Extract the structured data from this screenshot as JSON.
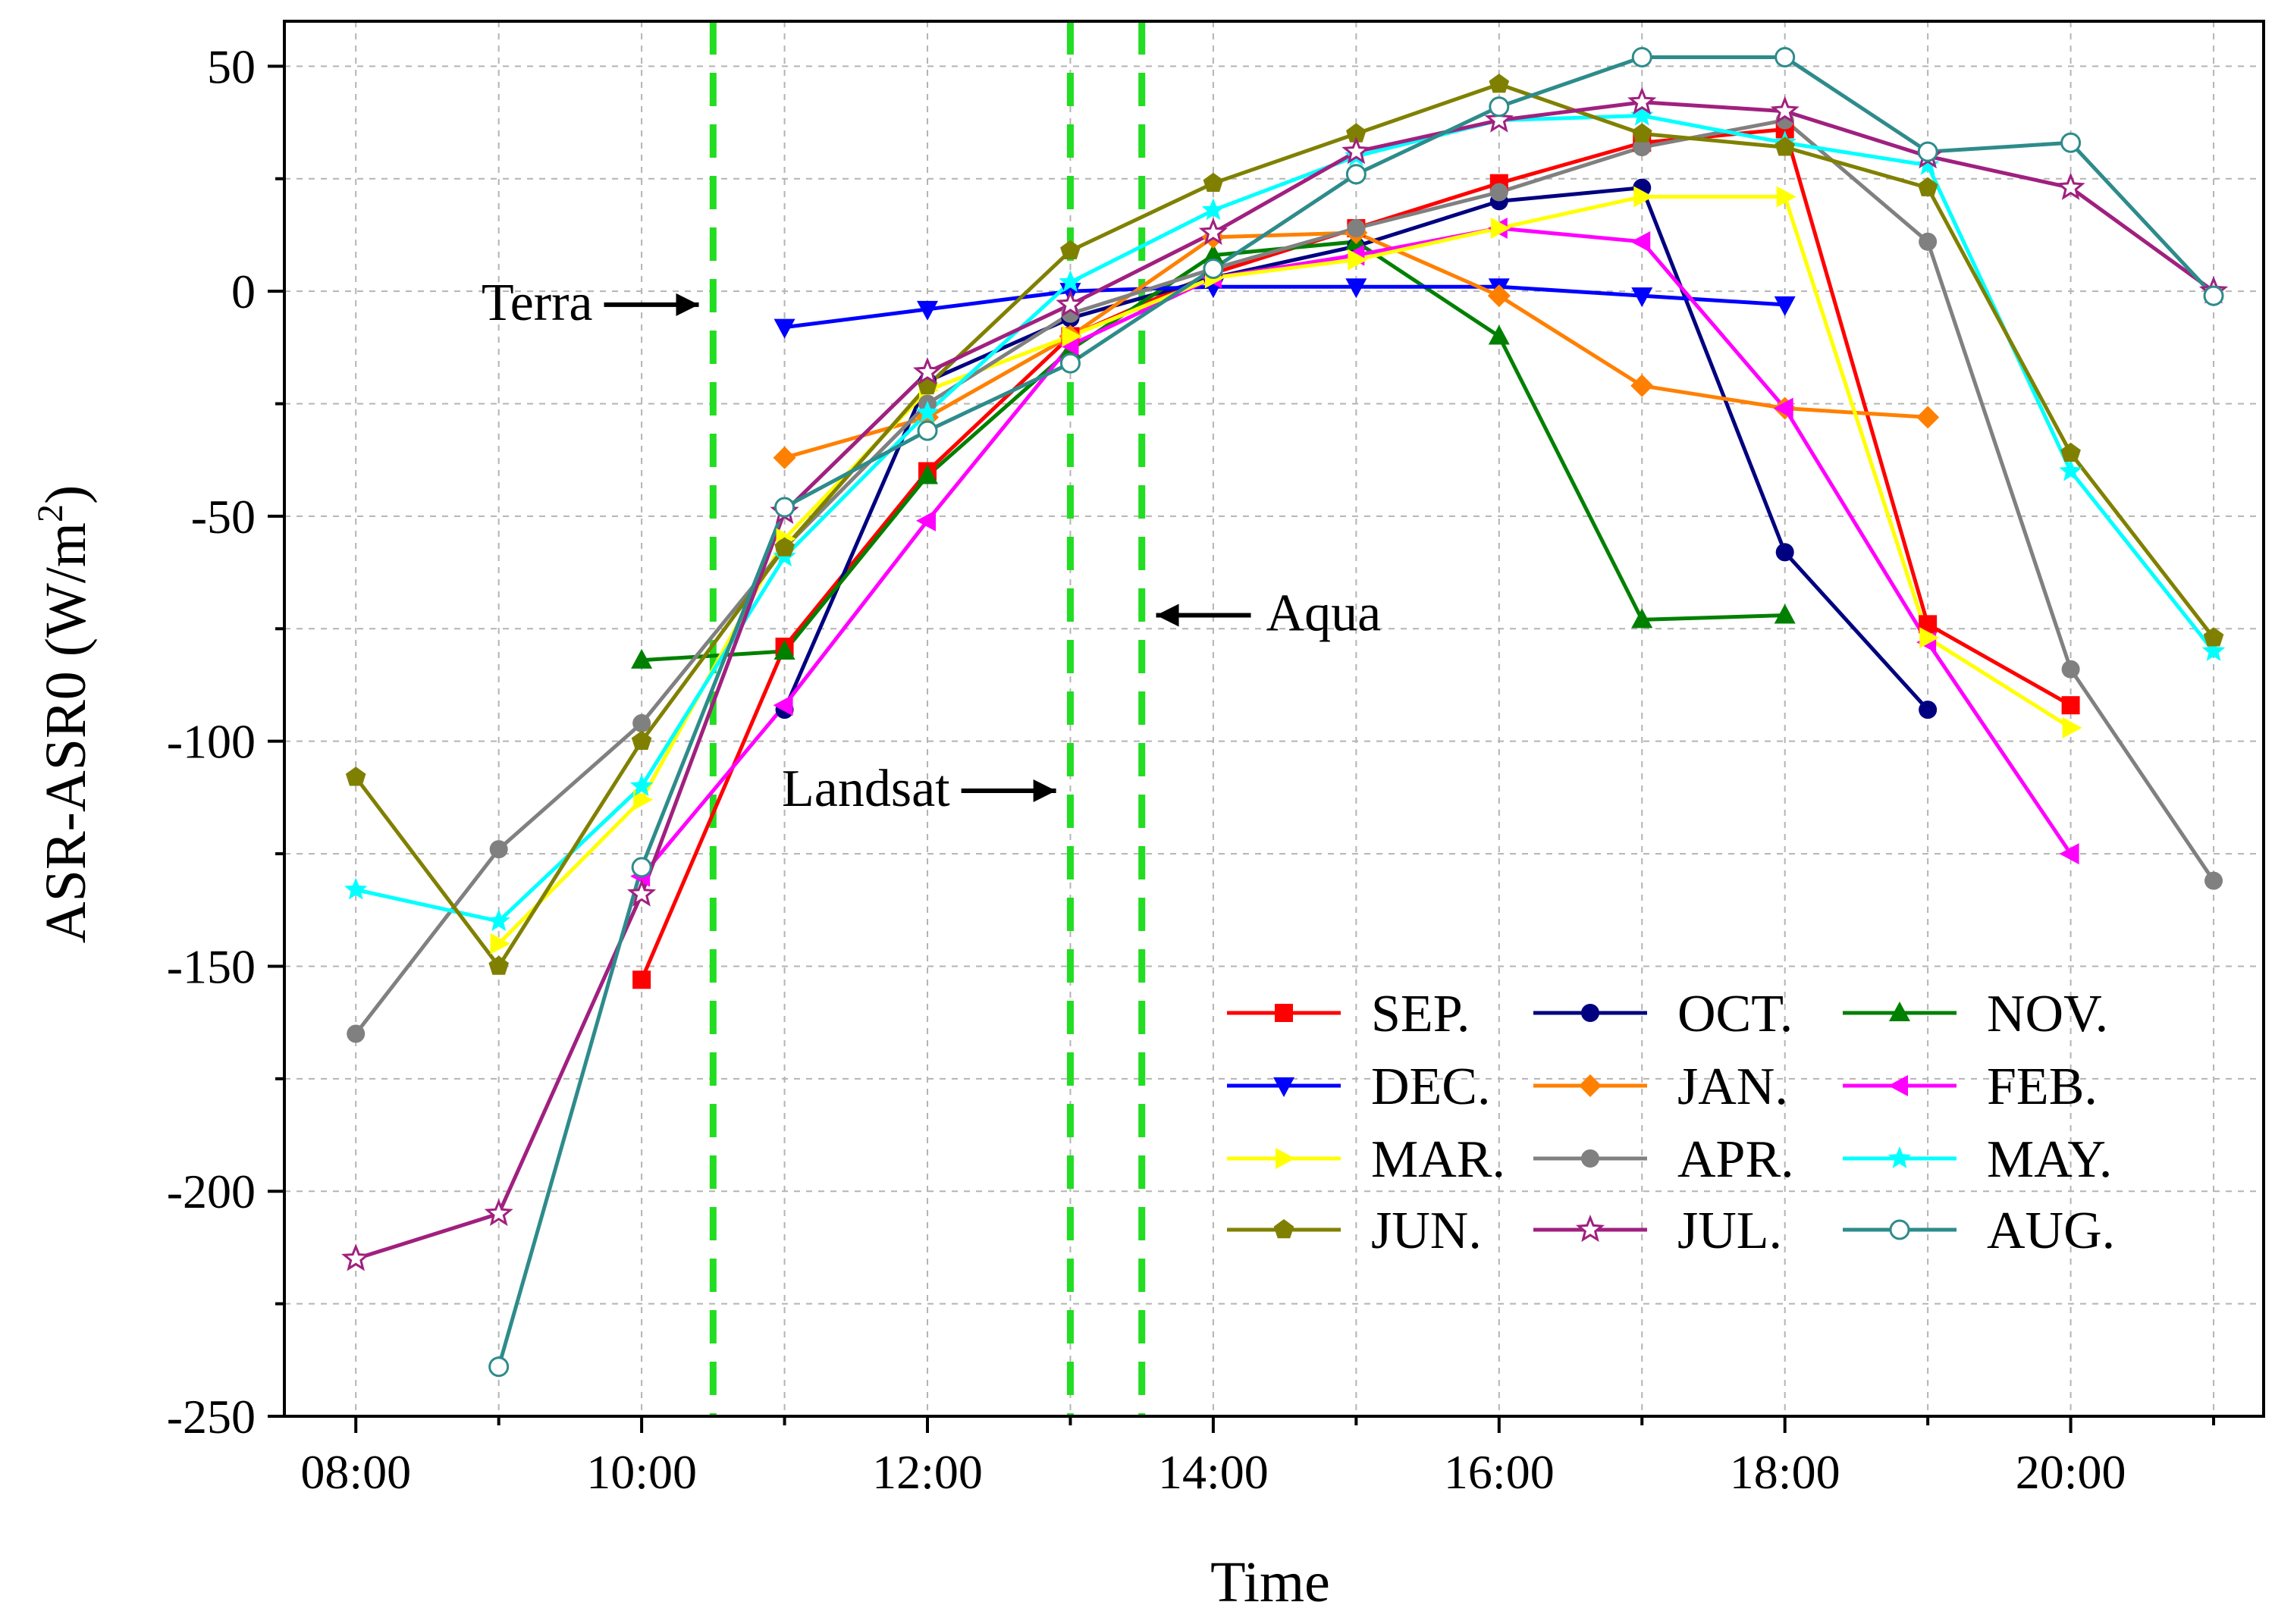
{
  "chart_data": {
    "type": "line",
    "title": "",
    "xlabel": "Time",
    "ylabel": "ASR-ASR0 (W/m",
    "ylabel_superscript": "2",
    "ylabel_close": ")",
    "x": [
      8,
      9,
      10,
      11,
      12,
      13,
      14,
      15,
      16,
      17,
      18,
      19,
      20,
      21
    ],
    "xlim": [
      7.5,
      21.35
    ],
    "ylim": [
      -250,
      60
    ],
    "xticks": [
      {
        "value": 8,
        "label": "08:00"
      },
      {
        "value": 10,
        "label": "10:00"
      },
      {
        "value": 12,
        "label": "12:00"
      },
      {
        "value": 14,
        "label": "14:00"
      },
      {
        "value": 16,
        "label": "16:00"
      },
      {
        "value": 18,
        "label": "18:00"
      },
      {
        "value": 20,
        "label": "20:00"
      }
    ],
    "yticks": [
      {
        "value": 50,
        "label": "50"
      },
      {
        "value": 0,
        "label": "0"
      },
      {
        "value": -50,
        "label": "-50"
      },
      {
        "value": -100,
        "label": "-100"
      },
      {
        "value": -150,
        "label": "-150"
      },
      {
        "value": -200,
        "label": "-200"
      },
      {
        "value": -250,
        "label": "-250"
      }
    ],
    "grid": true,
    "legend_position": "bottom-right",
    "vlines": [
      {
        "x": 10.5,
        "color": "#22dd22",
        "style": "dashed"
      },
      {
        "x": 13.0,
        "color": "#22dd22",
        "style": "dashed"
      },
      {
        "x": 13.5,
        "color": "#22dd22",
        "style": "dashed"
      }
    ],
    "annotations": [
      {
        "text": "Terra",
        "arrow": "right",
        "anchor_x": 10.4,
        "anchor_y": -3
      },
      {
        "text": "Landsat",
        "arrow": "right",
        "anchor_x": 12.9,
        "anchor_y": -111
      },
      {
        "text": "Aqua",
        "arrow": "left",
        "anchor_x": 13.6,
        "anchor_y": -72
      }
    ],
    "series": [
      {
        "name": "SEP.",
        "color": "#ff0000",
        "marker": "square",
        "x": [
          10,
          11,
          12,
          13,
          14,
          15,
          16,
          17,
          18,
          19,
          20
        ],
        "values": [
          -153,
          -79,
          -40,
          -10,
          4,
          14,
          24,
          33,
          36,
          -74,
          -92
        ]
      },
      {
        "name": "OCT.",
        "color": "#000080",
        "marker": "circle",
        "x": [
          11,
          12,
          13,
          14,
          15,
          16,
          17,
          18,
          19
        ],
        "values": [
          -93,
          -20,
          -6,
          3,
          10,
          20,
          23,
          -58,
          -93
        ]
      },
      {
        "name": "NOV.",
        "color": "#008000",
        "marker": "triangle-up",
        "x": [
          10,
          11,
          12,
          13,
          14,
          15,
          16,
          17,
          18
        ],
        "values": [
          -82,
          -80,
          -41,
          -13,
          8,
          11,
          -10,
          -73,
          -72
        ]
      },
      {
        "name": "DEC.",
        "color": "#0000ff",
        "marker": "triangle-down",
        "x": [
          11,
          12,
          13,
          14,
          15,
          16,
          17,
          18
        ],
        "values": [
          -8,
          -4,
          0,
          1,
          1,
          1,
          -1,
          -3
        ]
      },
      {
        "name": "JAN.",
        "color": "#ff8000",
        "marker": "diamond",
        "x": [
          11,
          12,
          13,
          14,
          15,
          16,
          17,
          18,
          19
        ],
        "values": [
          -37,
          -28,
          -10,
          12,
          13,
          -1,
          -21,
          -26,
          -28
        ]
      },
      {
        "name": "FEB.",
        "color": "#ff00ff",
        "marker": "triangle-left",
        "x": [
          10,
          11,
          12,
          13,
          14,
          15,
          16,
          17,
          18,
          19,
          20
        ],
        "values": [
          -130,
          -92,
          -51,
          -12,
          3,
          8,
          14,
          11,
          -26,
          -78,
          -125
        ]
      },
      {
        "name": "MAR.",
        "color": "#ffff00",
        "marker": "triangle-right",
        "x": [
          9,
          10,
          11,
          12,
          13,
          14,
          15,
          16,
          17,
          18,
          19,
          20
        ],
        "values": [
          -145,
          -113,
          -55,
          -22,
          -10,
          3,
          7,
          14,
          21,
          21,
          -77,
          -97
        ]
      },
      {
        "name": "APR.",
        "color": "#808080",
        "marker": "circle",
        "x": [
          8,
          9,
          10,
          11,
          12,
          13,
          14,
          15,
          16,
          17,
          18,
          19,
          20,
          21
        ],
        "values": [
          -165,
          -124,
          -96,
          -57,
          -25,
          -5,
          5,
          14,
          22,
          32,
          38,
          11,
          -84,
          -131
        ]
      },
      {
        "name": "MAY.",
        "color": "#00ffff",
        "marker": "star",
        "x": [
          8,
          9,
          10,
          11,
          12,
          13,
          14,
          15,
          16,
          17,
          18,
          19,
          20,
          21
        ],
        "values": [
          -133,
          -140,
          -110,
          -59,
          -27,
          2,
          18,
          30,
          38,
          39,
          33,
          28,
          -40,
          -80
        ]
      },
      {
        "name": "JUN.",
        "color": "#808000",
        "marker": "pentagon",
        "x": [
          8,
          9,
          10,
          11,
          12,
          13,
          14,
          15,
          16,
          17,
          18,
          19,
          20,
          21
        ],
        "values": [
          -108,
          -150,
          -100,
          -57,
          -21,
          9,
          24,
          35,
          46,
          35,
          32,
          23,
          -36,
          -77
        ]
      },
      {
        "name": "JUL.",
        "color": "#a0207f",
        "marker": "star-open",
        "x": [
          8,
          9,
          10,
          11,
          12,
          13,
          14,
          15,
          16,
          17,
          18,
          19,
          20,
          21
        ],
        "values": [
          -215,
          -205,
          -134,
          -49,
          -18,
          -3,
          13,
          31,
          38,
          42,
          40,
          30,
          23,
          0
        ]
      },
      {
        "name": "AUG.",
        "color": "#2e8b8b",
        "marker": "circle-open",
        "x": [
          9,
          10,
          11,
          12,
          13,
          14,
          15,
          16,
          17,
          18,
          19,
          20,
          21
        ],
        "values": [
          -239,
          -128,
          -48,
          -31,
          -16,
          5,
          26,
          41,
          52,
          52,
          31,
          33,
          -1
        ]
      }
    ]
  }
}
